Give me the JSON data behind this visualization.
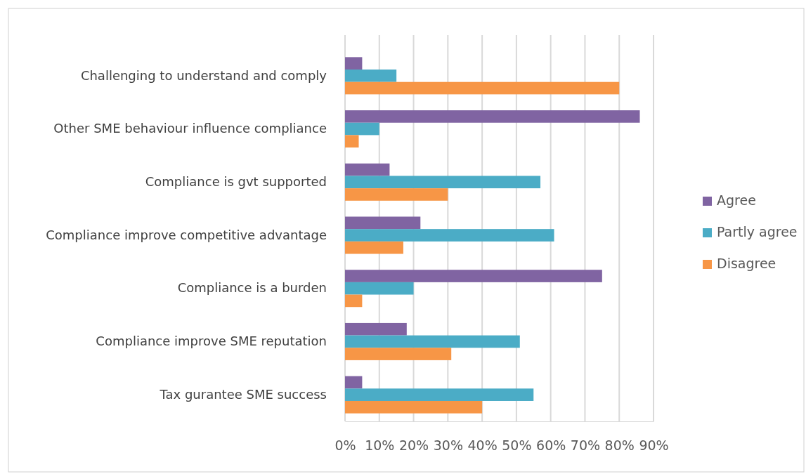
{
  "chart_data": {
    "type": "bar",
    "orientation": "horizontal",
    "categories": [
      "Challenging to understand and comply",
      "Other SME behaviour influence compliance",
      "Compliance is gvt supported",
      "Compliance improve competitive advantage",
      "Compliance is a burden",
      "Compliance improve SME reputation",
      "Tax gurantee SME success"
    ],
    "series": [
      {
        "name": "Agree",
        "color": "#8064a2",
        "values": [
          5,
          86,
          13,
          22,
          75,
          18,
          5
        ]
      },
      {
        "name": "Partly agree",
        "color": "#4bacc6",
        "values": [
          15,
          10,
          57,
          61,
          20,
          51,
          55
        ]
      },
      {
        "name": "Disagree",
        "color": "#f79646",
        "values": [
          80,
          4,
          30,
          17,
          5,
          31,
          40
        ]
      }
    ],
    "xlim": [
      0,
      90
    ],
    "xticks": [
      {
        "value": 0,
        "label": "0%"
      },
      {
        "value": 10,
        "label": "10%"
      },
      {
        "value": 20,
        "label": "20%"
      },
      {
        "value": 30,
        "label": "30%"
      },
      {
        "value": 40,
        "label": "40%"
      },
      {
        "value": 50,
        "label": "50%"
      },
      {
        "value": 60,
        "label": "60%"
      },
      {
        "value": 70,
        "label": "70%"
      },
      {
        "value": 80,
        "label": "80%"
      },
      {
        "value": 90,
        "label": "90%"
      }
    ],
    "grid": "x",
    "legend": "right"
  }
}
